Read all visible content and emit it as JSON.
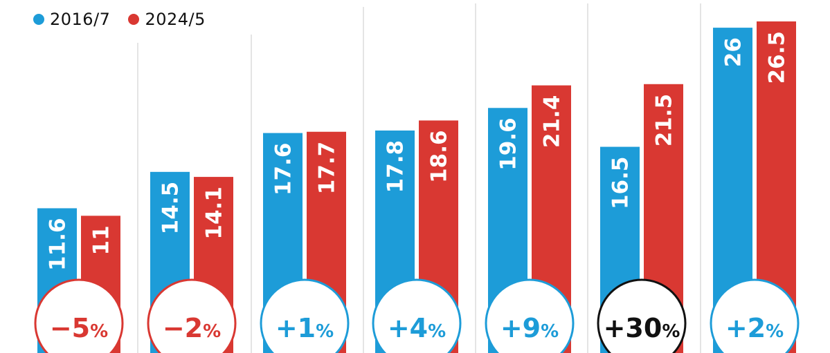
{
  "chart_data": {
    "type": "bar",
    "title": "",
    "xlabel": "",
    "ylabel": "",
    "ylim": [
      0,
      28
    ],
    "grid": false,
    "legend_placement": "top-left",
    "series": [
      {
        "name": "2016/7",
        "color": "#1d9cd8",
        "values": [
          11.6,
          14.5,
          17.6,
          17.8,
          19.6,
          16.5,
          26
        ],
        "labels": [
          "11.6",
          "14.5",
          "17.6",
          "17.8",
          "19.6",
          "16.5",
          "26"
        ]
      },
      {
        "name": "2024/5",
        "color": "#d93832",
        "values": [
          11,
          14.1,
          17.7,
          18.6,
          21.4,
          21.5,
          26.5
        ],
        "labels": [
          "11",
          "14.1",
          "17.7",
          "18.6",
          "21.4",
          "21.5",
          "26.5"
        ]
      }
    ],
    "changes": [
      {
        "num": "−5",
        "pct": "%",
        "value": -5,
        "color": "#d93832"
      },
      {
        "num": "−2",
        "pct": "%",
        "value": -2,
        "color": "#d93832"
      },
      {
        "num": "+1",
        "pct": "%",
        "value": 1,
        "color": "#1d9cd8"
      },
      {
        "num": "+4",
        "pct": "%",
        "value": 4,
        "color": "#1d9cd8"
      },
      {
        "num": "+9",
        "pct": "%",
        "value": 9,
        "color": "#1d9cd8"
      },
      {
        "num": "+30",
        "pct": "%",
        "value": 30,
        "color": "#111111"
      },
      {
        "num": "+2",
        "pct": "%",
        "value": 2,
        "color": "#1d9cd8"
      }
    ]
  }
}
